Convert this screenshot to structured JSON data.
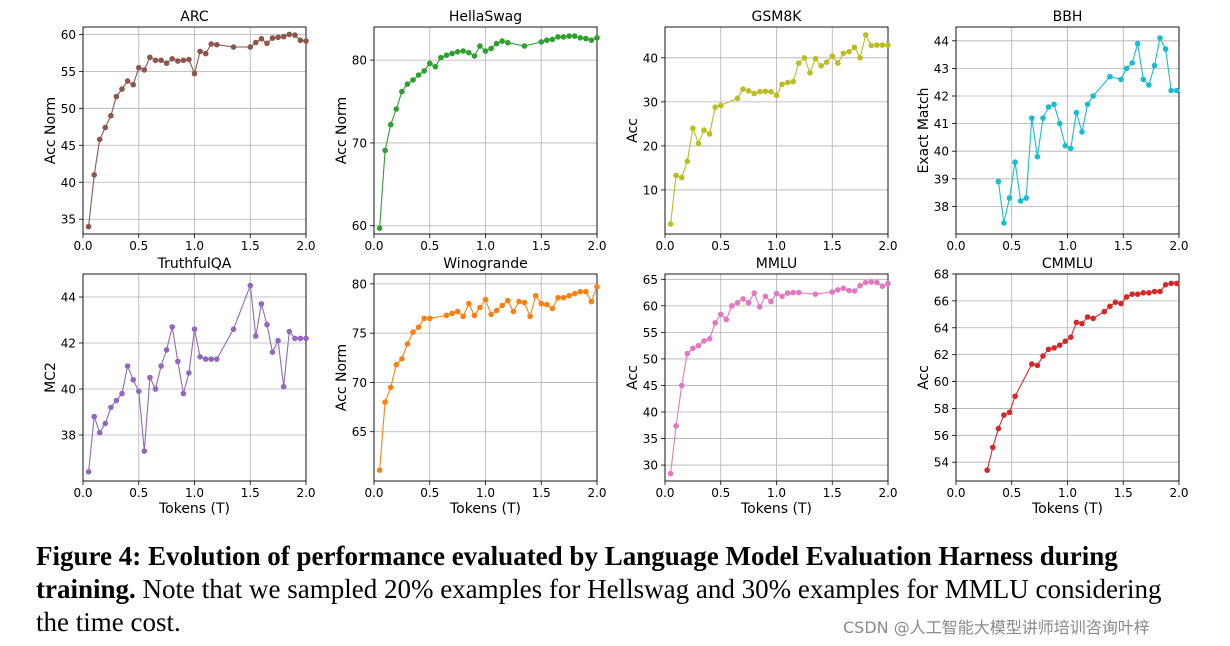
{
  "figure": {
    "caption_bold": "Figure 4: Evolution of performance evaluated by Language Model Evaluation Harness during training.",
    "caption_rest": "Note that we sampled 20% examples for Hellswag and 30% examples for MMLU considering the time cost.",
    "watermark": "CSDN @人工智能大模型讲师培训咨询叶梓"
  },
  "chart_data": [
    {
      "type": "line",
      "title": "ARC",
      "xlabel": "",
      "ylabel": "Acc Norm",
      "color": "#8c564b",
      "xlim": [
        0,
        2.0
      ],
      "ylim": [
        33,
        61
      ],
      "xticks": [
        0.0,
        0.5,
        1.0,
        1.5,
        2.0
      ],
      "xtick_labels": [
        "0.0",
        "0.5",
        "1.0",
        "1.5",
        "2.0"
      ],
      "yticks": [
        35,
        40,
        45,
        50,
        55,
        60
      ],
      "ytick_labels": [
        "35",
        "40",
        "45",
        "50",
        "55",
        "60"
      ],
      "x": [
        0.05,
        0.1,
        0.15,
        0.2,
        0.25,
        0.3,
        0.35,
        0.4,
        0.45,
        0.5,
        0.55,
        0.6,
        0.65,
        0.7,
        0.75,
        0.8,
        0.85,
        0.9,
        0.95,
        1.0,
        1.05,
        1.1,
        1.15,
        1.2,
        1.35,
        1.5,
        1.55,
        1.6,
        1.65,
        1.7,
        1.75,
        1.8,
        1.85,
        1.9,
        1.95,
        2.0
      ],
      "y": [
        34.0,
        41.0,
        45.8,
        47.4,
        49.0,
        51.6,
        52.6,
        53.7,
        53.2,
        55.5,
        55.2,
        56.9,
        56.5,
        56.5,
        56.1,
        56.7,
        56.4,
        56.5,
        56.6,
        54.7,
        57.7,
        57.4,
        58.7,
        58.6,
        58.3,
        58.3,
        58.9,
        59.4,
        58.8,
        59.5,
        59.6,
        59.7,
        60.0,
        59.9,
        59.2,
        59.1
      ]
    },
    {
      "type": "line",
      "title": "HellaSwag",
      "xlabel": "",
      "ylabel": "Acc Norm",
      "color": "#2ca02c",
      "xlim": [
        0,
        2.0
      ],
      "ylim": [
        59,
        84
      ],
      "xticks": [
        0.0,
        0.5,
        1.0,
        1.5,
        2.0
      ],
      "xtick_labels": [
        "0.0",
        "0.5",
        "1.0",
        "1.5",
        "2.0"
      ],
      "yticks": [
        60,
        70,
        80
      ],
      "ytick_labels": [
        "60",
        "70",
        "80"
      ],
      "x": [
        0.05,
        0.1,
        0.15,
        0.2,
        0.25,
        0.3,
        0.35,
        0.4,
        0.45,
        0.5,
        0.55,
        0.6,
        0.65,
        0.7,
        0.75,
        0.8,
        0.85,
        0.9,
        0.95,
        1.0,
        1.05,
        1.1,
        1.15,
        1.2,
        1.35,
        1.5,
        1.55,
        1.6,
        1.65,
        1.7,
        1.75,
        1.8,
        1.85,
        1.9,
        1.95,
        2.0
      ],
      "y": [
        59.7,
        69.1,
        72.2,
        74.1,
        76.2,
        77.1,
        77.6,
        78.2,
        78.7,
        79.6,
        79.2,
        80.3,
        80.6,
        80.8,
        81.0,
        81.1,
        80.9,
        80.5,
        81.7,
        81.1,
        81.4,
        82.0,
        82.3,
        82.1,
        81.7,
        82.2,
        82.4,
        82.5,
        82.8,
        82.8,
        82.9,
        82.9,
        82.7,
        82.6,
        82.4,
        82.7
      ]
    },
    {
      "type": "line",
      "title": "GSM8K",
      "xlabel": "",
      "ylabel": "Acc",
      "color": "#bcbd22",
      "xlim": [
        0,
        2.0
      ],
      "ylim": [
        0,
        47
      ],
      "xticks": [
        0.0,
        0.5,
        1.0,
        1.5,
        2.0
      ],
      "xtick_labels": [
        "0.0",
        "0.5",
        "1.0",
        "1.5",
        "2.0"
      ],
      "yticks": [
        10,
        20,
        30,
        40
      ],
      "ytick_labels": [
        "10",
        "20",
        "30",
        "40"
      ],
      "x": [
        0.05,
        0.1,
        0.15,
        0.2,
        0.25,
        0.3,
        0.35,
        0.4,
        0.45,
        0.5,
        0.65,
        0.7,
        0.75,
        0.8,
        0.85,
        0.9,
        0.95,
        1.0,
        1.05,
        1.1,
        1.15,
        1.2,
        1.25,
        1.3,
        1.35,
        1.4,
        1.45,
        1.5,
        1.55,
        1.6,
        1.65,
        1.7,
        1.75,
        1.8,
        1.85,
        1.9,
        1.95,
        2.0
      ],
      "y": [
        2.3,
        13.3,
        12.8,
        16.5,
        24.0,
        20.6,
        23.6,
        22.7,
        28.8,
        29.2,
        30.8,
        32.9,
        32.5,
        31.9,
        32.3,
        32.4,
        32.3,
        31.5,
        34.0,
        34.4,
        34.6,
        38.8,
        40.0,
        36.6,
        39.8,
        38.2,
        39.0,
        40.4,
        38.8,
        41.0,
        41.4,
        42.4,
        40.0,
        45.2,
        42.8,
        42.9,
        42.9,
        42.9
      ]
    },
    {
      "type": "line",
      "title": "BBH",
      "xlabel": "",
      "ylabel": "Exact Match",
      "color": "#17becf",
      "xlim": [
        0,
        2.0
      ],
      "ylim": [
        37,
        44.5
      ],
      "xticks": [
        0.0,
        0.5,
        1.0,
        1.5,
        2.0
      ],
      "xtick_labels": [
        "0.0",
        "0.5",
        "1.0",
        "1.5",
        "2.0"
      ],
      "yticks": [
        38,
        39,
        40,
        41,
        42,
        43,
        44
      ],
      "ytick_labels": [
        "38",
        "39",
        "40",
        "41",
        "42",
        "43",
        "44"
      ],
      "x": [
        0.38,
        0.43,
        0.48,
        0.53,
        0.58,
        0.63,
        0.68,
        0.73,
        0.78,
        0.83,
        0.88,
        0.93,
        0.98,
        1.03,
        1.08,
        1.13,
        1.18,
        1.23,
        1.38,
        1.48,
        1.53,
        1.58,
        1.63,
        1.68,
        1.73,
        1.78,
        1.83,
        1.88,
        1.93,
        1.98
      ],
      "y": [
        38.9,
        37.4,
        38.3,
        39.6,
        38.2,
        38.3,
        41.2,
        39.8,
        41.2,
        41.6,
        41.7,
        41.0,
        40.2,
        40.1,
        41.4,
        40.7,
        41.7,
        42.0,
        42.7,
        42.6,
        43.0,
        43.2,
        43.9,
        42.6,
        42.4,
        43.1,
        44.1,
        43.7,
        42.2,
        42.2
      ]
    },
    {
      "type": "line",
      "title": "TruthfulQA",
      "xlabel": "Tokens (T)",
      "ylabel": "MC2",
      "color": "#9467bd",
      "xlim": [
        0,
        2.0
      ],
      "ylim": [
        36,
        45
      ],
      "xticks": [
        0.0,
        0.5,
        1.0,
        1.5,
        2.0
      ],
      "xtick_labels": [
        "0.0",
        "0.5",
        "1.0",
        "1.5",
        "2.0"
      ],
      "yticks": [
        38,
        40,
        42,
        44
      ],
      "ytick_labels": [
        "38",
        "40",
        "42",
        "44"
      ],
      "x": [
        0.05,
        0.1,
        0.15,
        0.2,
        0.25,
        0.3,
        0.35,
        0.4,
        0.45,
        0.5,
        0.55,
        0.6,
        0.65,
        0.7,
        0.75,
        0.8,
        0.85,
        0.9,
        0.95,
        1.0,
        1.05,
        1.1,
        1.15,
        1.2,
        1.35,
        1.5,
        1.55,
        1.6,
        1.65,
        1.7,
        1.75,
        1.8,
        1.85,
        1.9,
        1.95,
        2.0
      ],
      "y": [
        36.4,
        38.8,
        38.1,
        38.5,
        39.2,
        39.5,
        39.8,
        41.0,
        40.4,
        39.9,
        37.3,
        40.5,
        40.0,
        41.0,
        41.7,
        42.7,
        41.2,
        39.8,
        40.7,
        42.6,
        41.4,
        41.3,
        41.3,
        41.3,
        42.6,
        44.5,
        42.3,
        43.7,
        42.8,
        41.6,
        42.1,
        40.1,
        42.5,
        42.2,
        42.2,
        42.2
      ]
    },
    {
      "type": "line",
      "title": "Winogrande",
      "xlabel": "Tokens (T)",
      "ylabel": "Acc Norm",
      "color": "#ff7f0e",
      "xlim": [
        0,
        2.0
      ],
      "ylim": [
        60,
        81
      ],
      "xticks": [
        0.0,
        0.5,
        1.0,
        1.5,
        2.0
      ],
      "xtick_labels": [
        "0.0",
        "0.5",
        "1.0",
        "1.5",
        "2.0"
      ],
      "yticks": [
        65,
        70,
        75,
        80
      ],
      "ytick_labels": [
        "65",
        "70",
        "75",
        "80"
      ],
      "x": [
        0.05,
        0.1,
        0.15,
        0.2,
        0.25,
        0.3,
        0.35,
        0.4,
        0.45,
        0.5,
        0.65,
        0.7,
        0.75,
        0.8,
        0.85,
        0.9,
        0.95,
        1.0,
        1.05,
        1.1,
        1.15,
        1.2,
        1.25,
        1.3,
        1.35,
        1.4,
        1.45,
        1.5,
        1.55,
        1.6,
        1.65,
        1.7,
        1.75,
        1.8,
        1.85,
        1.9,
        1.95,
        2.0
      ],
      "y": [
        61.1,
        68.0,
        69.5,
        71.8,
        72.4,
        73.9,
        75.1,
        75.6,
        76.5,
        76.5,
        76.8,
        77.0,
        77.2,
        76.7,
        78.0,
        76.8,
        77.6,
        78.4,
        76.9,
        77.3,
        77.8,
        78.3,
        77.2,
        78.2,
        78.1,
        76.7,
        78.8,
        78.0,
        77.9,
        77.5,
        78.6,
        78.6,
        78.8,
        79.0,
        79.2,
        79.2,
        78.2,
        79.7
      ]
    },
    {
      "type": "line",
      "title": "MMLU",
      "xlabel": "Tokens (T)",
      "ylabel": "Acc",
      "color": "#e377c2",
      "xlim": [
        0,
        2.0
      ],
      "ylim": [
        27,
        66
      ],
      "xticks": [
        0.0,
        0.5,
        1.0,
        1.5,
        2.0
      ],
      "xtick_labels": [
        "0.0",
        "0.5",
        "1.0",
        "1.5",
        "2.0"
      ],
      "yticks": [
        30,
        35,
        40,
        45,
        50,
        55,
        60,
        65
      ],
      "ytick_labels": [
        "30",
        "35",
        "40",
        "45",
        "50",
        "55",
        "60",
        "65"
      ],
      "x": [
        0.05,
        0.1,
        0.15,
        0.2,
        0.25,
        0.3,
        0.35,
        0.4,
        0.45,
        0.5,
        0.55,
        0.6,
        0.65,
        0.7,
        0.75,
        0.8,
        0.85,
        0.9,
        0.95,
        1.0,
        1.05,
        1.1,
        1.15,
        1.2,
        1.35,
        1.5,
        1.55,
        1.6,
        1.65,
        1.7,
        1.75,
        1.8,
        1.85,
        1.9,
        1.95,
        2.0
      ],
      "y": [
        28.4,
        37.4,
        45.0,
        51.0,
        52.0,
        52.5,
        53.4,
        53.8,
        56.8,
        58.4,
        57.4,
        60.0,
        60.6,
        61.3,
        60.6,
        62.4,
        59.8,
        61.8,
        60.8,
        62.3,
        61.8,
        62.4,
        62.5,
        62.5,
        62.2,
        62.6,
        63.0,
        63.3,
        62.9,
        62.8,
        63.8,
        64.4,
        64.5,
        64.4,
        63.7,
        64.2
      ]
    },
    {
      "type": "line",
      "title": "CMMLU",
      "xlabel": "Tokens (T)",
      "ylabel": "Acc",
      "color": "#d62728",
      "xlim": [
        0,
        2.0
      ],
      "ylim": [
        52.6,
        68
      ],
      "xticks": [
        0.0,
        0.5,
        1.0,
        1.5,
        2.0
      ],
      "xtick_labels": [
        "0.0",
        "0.5",
        "1.0",
        "1.5",
        "2.0"
      ],
      "yticks": [
        54,
        56,
        58,
        60,
        62,
        64,
        66,
        68
      ],
      "ytick_labels": [
        "54",
        "56",
        "58",
        "60",
        "62",
        "64",
        "66",
        "68"
      ],
      "x": [
        0.28,
        0.33,
        0.38,
        0.43,
        0.48,
        0.53,
        0.68,
        0.73,
        0.78,
        0.83,
        0.88,
        0.93,
        0.98,
        1.03,
        1.08,
        1.13,
        1.18,
        1.23,
        1.33,
        1.38,
        1.43,
        1.48,
        1.53,
        1.58,
        1.63,
        1.68,
        1.73,
        1.78,
        1.83,
        1.88,
        1.93,
        1.98
      ],
      "y": [
        53.4,
        55.1,
        56.5,
        57.5,
        57.7,
        58.9,
        61.3,
        61.2,
        61.9,
        62.4,
        62.5,
        62.7,
        63.0,
        63.3,
        64.4,
        64.3,
        64.8,
        64.7,
        65.2,
        65.6,
        65.9,
        65.8,
        66.3,
        66.5,
        66.5,
        66.6,
        66.6,
        66.7,
        66.7,
        67.2,
        67.3,
        67.3
      ]
    }
  ]
}
